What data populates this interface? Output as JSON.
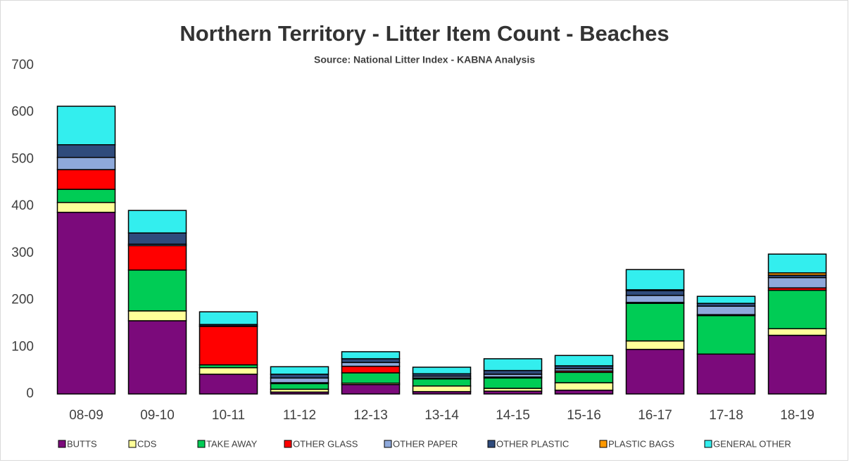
{
  "chart_data": {
    "type": "stacked_bar",
    "title": "Northern Territory - Litter Item Count - Beaches",
    "subtitle": "Source: National Litter Index - KABNA Analysis",
    "categories": [
      "08-09",
      "09-10",
      "10-11",
      "11-12",
      "12-13",
      "13-14",
      "14-15",
      "15-16",
      "16-17",
      "17-18",
      "18-19"
    ],
    "series": [
      {
        "name": "BUTTS",
        "color": "#7b0a7b",
        "values": [
          387,
          156,
          42,
          4,
          20,
          5,
          6,
          8,
          95,
          85,
          125
        ]
      },
      {
        "name": "CDS",
        "color": "#ffff99",
        "values": [
          21,
          21,
          14,
          6,
          3,
          12,
          6,
          16,
          18,
          0,
          14
        ]
      },
      {
        "name": "TAKE AWAY",
        "color": "#00cc55",
        "values": [
          28,
          87,
          6,
          12,
          22,
          15,
          22,
          22,
          80,
          82,
          82
        ]
      },
      {
        "name": "OTHER GLASS",
        "color": "#ff0000",
        "values": [
          42,
          52,
          82,
          2,
          14,
          2,
          2,
          3,
          2,
          2,
          5
        ]
      },
      {
        "name": "OTHER PAPER",
        "color": "#8ea9db",
        "values": [
          26,
          3,
          1,
          10,
          8,
          4,
          6,
          5,
          15,
          18,
          22
        ]
      },
      {
        "name": "OTHER PLASTIC",
        "color": "#2f4b7c",
        "values": [
          27,
          24,
          3,
          8,
          8,
          5,
          8,
          6,
          10,
          6,
          5
        ]
      },
      {
        "name": "PLASTIC BAGS",
        "color": "#ff9900",
        "values": [
          0,
          0,
          0,
          0,
          0,
          0,
          0,
          0,
          2,
          0,
          5
        ]
      },
      {
        "name": "GENERAL OTHER",
        "color": "#33eeee",
        "values": [
          82,
          48,
          27,
          16,
          15,
          14,
          25,
          22,
          43,
          15,
          40
        ]
      }
    ],
    "ylim": [
      0,
      700
    ],
    "yticks": [
      0,
      100,
      200,
      300,
      400,
      500,
      600,
      700
    ],
    "grid": false,
    "legend": "bottom"
  }
}
